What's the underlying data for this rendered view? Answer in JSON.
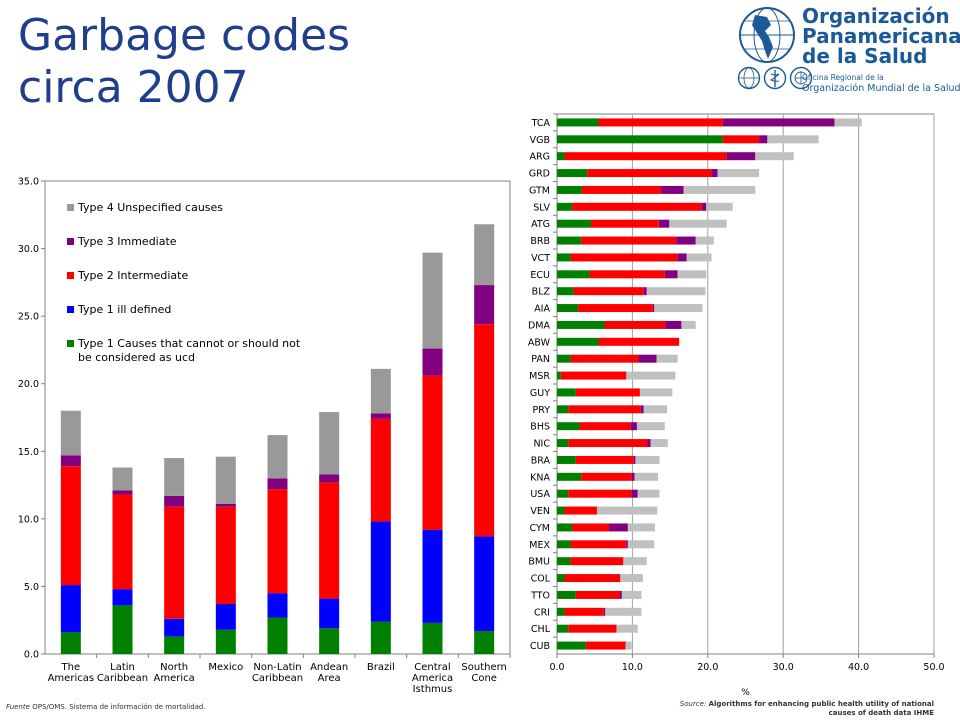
{
  "title": {
    "line1": "Garbage codes",
    "line2": "circa 2007"
  },
  "logo": {
    "org_line1": "Organización",
    "org_line2": "Panamericana",
    "org_line3": "de la Salud",
    "sub_line1": "Oficina Regional de la",
    "sub_line2": "Organización Mundial de la Salud",
    "colors": {
      "text": "#1b5a97"
    },
    "icons": [
      "paho-globe-emblem",
      "paho-seal-icon",
      "who-emblem-icon",
      "un-emblem-icon"
    ]
  },
  "sources": {
    "left_label": "Fuente",
    "left_text": "OPS/OMS. Sistema de información de mortalidad.",
    "right_label": "Source:",
    "right_text": "Algorithms for enhancing public health utility of national causes of death data IHME"
  },
  "colors": {
    "type1": "#008000",
    "type1_ill": "#0000ff",
    "type2": "#ff0000",
    "type3": "#800080",
    "type4": "#999999",
    "type4_right": "#c0c0c0"
  },
  "chart_data": [
    {
      "type": "bar",
      "stacked": true,
      "categories": [
        [
          "The",
          "Americas"
        ],
        [
          "Latin",
          "Caribbean"
        ],
        [
          "North",
          "America"
        ],
        [
          "Mexico"
        ],
        [
          "Non-Latin",
          "Caribbean"
        ],
        [
          "Andean",
          "Area"
        ],
        [
          "Brazil"
        ],
        [
          "Central",
          "America",
          "Isthmus"
        ],
        [
          "Southern",
          "Cone"
        ]
      ],
      "series": [
        {
          "name": "Type 1  Causes that cannot or should not be considered as ucd",
          "legend_lines": [
            "Type 1  Causes that cannot or should not",
            "be considered as ucd"
          ],
          "color": "#008000",
          "values": [
            1.6,
            3.6,
            1.3,
            1.8,
            2.7,
            1.9,
            2.4,
            2.3,
            1.7
          ]
        },
        {
          "name": "Type 1 ill defined",
          "legend_lines": [
            "Type 1 ill defined"
          ],
          "color": "#0000ff",
          "values": [
            3.5,
            1.2,
            1.3,
            1.9,
            1.8,
            2.2,
            7.4,
            6.9,
            7.0
          ]
        },
        {
          "name": "Type 2 Intermediate",
          "legend_lines": [
            "Type 2 Intermediate"
          ],
          "color": "#ff0000",
          "values": [
            8.8,
            7.0,
            8.3,
            7.2,
            7.7,
            8.6,
            7.6,
            11.4,
            15.7
          ]
        },
        {
          "name": "Type 3 Immediate",
          "legend_lines": [
            "Type 3 Immediate"
          ],
          "color": "#800080",
          "values": [
            0.8,
            0.3,
            0.8,
            0.2,
            0.8,
            0.6,
            0.4,
            2.0,
            2.9
          ]
        },
        {
          "name": "Type 4 Unspecified causes",
          "legend_lines": [
            "Type 4 Unspecified causes"
          ],
          "color": "#999999",
          "values": [
            3.3,
            1.7,
            2.8,
            3.5,
            3.2,
            4.6,
            3.3,
            7.1,
            4.5
          ]
        }
      ],
      "ylim": [
        0,
        35
      ],
      "yticks": [
        "0.0",
        "5.0",
        "10.0",
        "15.0",
        "20.0",
        "25.0",
        "30.0",
        "35.0"
      ],
      "legend_order": [
        4,
        3,
        2,
        1,
        0
      ],
      "legend": "upper-left",
      "grid": false
    },
    {
      "type": "bar",
      "orientation": "horizontal",
      "stacked": true,
      "categories": [
        "TCA",
        "VGB",
        "ARG",
        "GRD",
        "GTM",
        "SLV",
        "ATG",
        "BRB",
        "VCT",
        "ECU",
        "BLZ",
        "AIA",
        "DMA",
        "ABW",
        "PAN",
        "MSR",
        "GUY",
        "PRY",
        "BHS",
        "NIC",
        "BRA",
        "KNA",
        "USA",
        "VEN",
        "CYM",
        "MEX",
        "BMU",
        "COL",
        "TTO",
        "CRI",
        "CHL",
        "CUB"
      ],
      "series": [
        {
          "name": "Type 1",
          "color": "#008000",
          "values": [
            5.5,
            22,
            1.0,
            4.0,
            3.3,
            2.0,
            4.5,
            3.2,
            1.8,
            4.3,
            2.2,
            2.8,
            6.3,
            5.5,
            1.8,
            0.5,
            2.5,
            1.5,
            3.0,
            1.5,
            2.5,
            3.2,
            1.5,
            1.0,
            2.0,
            1.8,
            1.8,
            1.0,
            2.5,
            1.0,
            1.5,
            3.8
          ]
        },
        {
          "name": "Type 2",
          "color": "#ff0000",
          "values": [
            16.5,
            4.8,
            21.5,
            16.5,
            10.5,
            17.2,
            9.0,
            12.6,
            14.2,
            10.0,
            9.3,
            9.9,
            8.1,
            10.7,
            9.0,
            8.7,
            8.5,
            9.6,
            6.8,
            10.5,
            7.7,
            6.7,
            8.4,
            4.3,
            4.9,
            7.4,
            7.0,
            7.4,
            5.8,
            5.2,
            6.4,
            5.3
          ]
        },
        {
          "name": "Type 3",
          "color": "#800080",
          "values": [
            14.8,
            1.1,
            3.8,
            0.8,
            3.0,
            0.6,
            1.4,
            2.6,
            1.2,
            1.7,
            0.4,
            0.2,
            2.1,
            0,
            2.4,
            0,
            0,
            0.4,
            0.8,
            0.4,
            0.2,
            0.4,
            0.8,
            0,
            2.5,
            0.2,
            0,
            0,
            0.3,
            0.2,
            0,
            0
          ]
        },
        {
          "name": "Type 4",
          "color": "#c0c0c0",
          "values": [
            3.6,
            6.8,
            5.1,
            5.5,
            9.5,
            3.5,
            7.6,
            2.4,
            3.3,
            3.8,
            7.8,
            6.4,
            1.9,
            0,
            2.8,
            6.5,
            4.3,
            3.1,
            3.7,
            2.3,
            3.2,
            3.1,
            2.9,
            8.0,
            3.6,
            3.5,
            3.1,
            3.0,
            2.6,
            4.8,
            2.8,
            0.8
          ]
        }
      ],
      "xlim": [
        0,
        50
      ],
      "xticks": [
        "0.0",
        "10.0",
        "20.0",
        "30.0",
        "40.0",
        "50.0"
      ],
      "xlabel": "%",
      "grid": true
    }
  ]
}
